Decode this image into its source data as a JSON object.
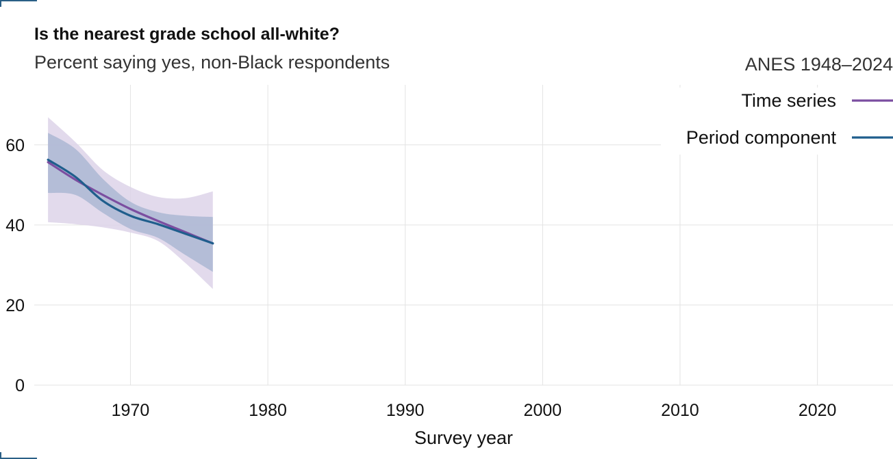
{
  "title": "Is the nearest grade school all-white?",
  "subtitle": "Percent saying yes, non-Black respondents",
  "source_label": "ANES 1948–2024",
  "colors": {
    "time_series": "#7b4ea0",
    "time_series_band": "#ddd3e9",
    "period_component": "#1f5e8c",
    "period_component_band": "#a9b5d2",
    "grid": "#e3e3e3"
  },
  "chart_data": {
    "type": "line",
    "title": "Is the nearest grade school all-white?",
    "subtitle": "Percent saying yes, non-Black respondents",
    "xlabel": "Survey year",
    "ylabel": "",
    "xlim": [
      1963,
      2025.5
    ],
    "ylim": [
      0,
      75
    ],
    "x_ticks": [
      1970,
      1980,
      1990,
      2000,
      2010,
      2020
    ],
    "y_ticks": [
      0,
      20,
      40,
      60
    ],
    "grid": true,
    "legend_position": "top-right",
    "series": [
      {
        "name": "Time series",
        "color": "#7b4ea0",
        "x": [
          1964,
          1966,
          1968,
          1970,
          1972,
          1974,
          1976
        ],
        "y": [
          55.7,
          51.3,
          47.5,
          44.0,
          41.0,
          38.2,
          35.4
        ],
        "lower": [
          40.7,
          40.2,
          39.4,
          38.1,
          36.0,
          30.5,
          24.0
        ],
        "upper": [
          66.9,
          60.7,
          53.7,
          49.5,
          47.0,
          46.7,
          48.4
        ]
      },
      {
        "name": "Period component",
        "color": "#1f5e8c",
        "x": [
          1964,
          1966,
          1968,
          1970,
          1972,
          1974,
          1976
        ],
        "y": [
          56.3,
          52.0,
          46.0,
          42.3,
          40.2,
          37.8,
          35.4
        ],
        "lower": [
          48.0,
          47.5,
          43.0,
          39.0,
          36.8,
          32.5,
          28.3
        ],
        "upper": [
          63.0,
          59.0,
          51.5,
          45.8,
          43.2,
          42.3,
          42.0
        ]
      }
    ]
  }
}
